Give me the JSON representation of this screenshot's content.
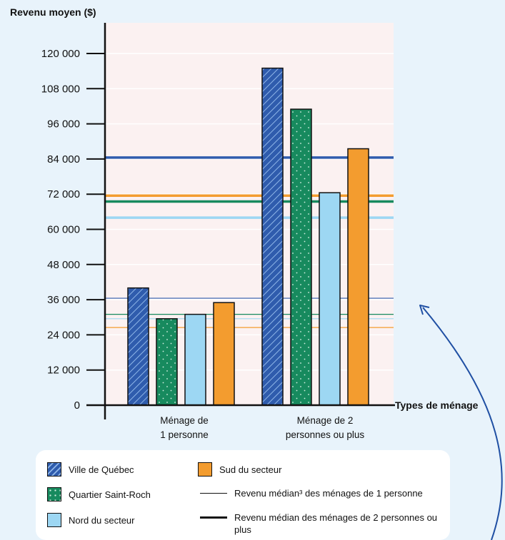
{
  "chart_data": {
    "type": "bar",
    "ylabel": "Revenu moyen ($)",
    "xlabel": "Types de ménage",
    "ylim": [
      0,
      120000
    ],
    "yticks": [
      {
        "value": 0,
        "label": "0"
      },
      {
        "value": 12000,
        "label": "12 000"
      },
      {
        "value": 24000,
        "label": "24 000"
      },
      {
        "value": 36000,
        "label": "36 000"
      },
      {
        "value": 48000,
        "label": "48 000"
      },
      {
        "value": 60000,
        "label": "60 000"
      },
      {
        "value": 72000,
        "label": "72 000"
      },
      {
        "value": 84000,
        "label": "84 000"
      },
      {
        "value": 96000,
        "label": "96 000"
      },
      {
        "value": 108000,
        "label": "108 000"
      },
      {
        "value": 120000,
        "label": "120 000"
      }
    ],
    "categories": [
      {
        "lines": [
          "Ménage de",
          "1 personne"
        ]
      },
      {
        "lines": [
          "Ménage de 2",
          "personnes ou plus"
        ]
      }
    ],
    "series": [
      {
        "name": "Ville de Québec",
        "color": "#2f5cad",
        "pattern": "hatch",
        "values": [
          40000,
          115000
        ]
      },
      {
        "name": "Quartier Saint-Roch",
        "color": "#178a5e",
        "pattern": "dots",
        "values": [
          29500,
          101000
        ]
      },
      {
        "name": "Nord du secteur",
        "color": "#9dd7f3",
        "pattern": "solid",
        "values": [
          31000,
          72500
        ]
      },
      {
        "name": "Sud du secteur",
        "color": "#f39c2f",
        "pattern": "solid",
        "values": [
          35000,
          87500
        ]
      }
    ],
    "reference_lines": {
      "one_person_median": [
        {
          "series": "Ville de Québec",
          "color": "#2f5cad",
          "value": 36500
        },
        {
          "series": "Quartier Saint-Roch",
          "color": "#178a5e",
          "value": 31000
        },
        {
          "series": "Nord du secteur",
          "color": "#9dd7f3",
          "value": 29500
        },
        {
          "series": "Sud du secteur",
          "color": "#f39c2f",
          "value": 26500
        }
      ],
      "two_plus_median": [
        {
          "series": "Ville de Québec",
          "color": "#2f5cad",
          "value": 84500
        },
        {
          "series": "Sud du secteur",
          "color": "#f39c2f",
          "value": 71500
        },
        {
          "series": "Quartier Saint-Roch",
          "color": "#178a5e",
          "value": 69500
        },
        {
          "series": "Nord du secteur",
          "color": "#9dd7f3",
          "value": 64000
        }
      ]
    },
    "legend": {
      "one_person_line": "Revenu médian³ des ménages de 1 personne",
      "two_plus_line": "Revenu médian des ménages de 2 personnes ou plus"
    },
    "colors": {
      "page_background": "#e8f3fb",
      "plot_background": "#fbf1f1",
      "gridline": "#ffffff",
      "axis": "#111111",
      "arrow": "#1f4fa3"
    }
  }
}
